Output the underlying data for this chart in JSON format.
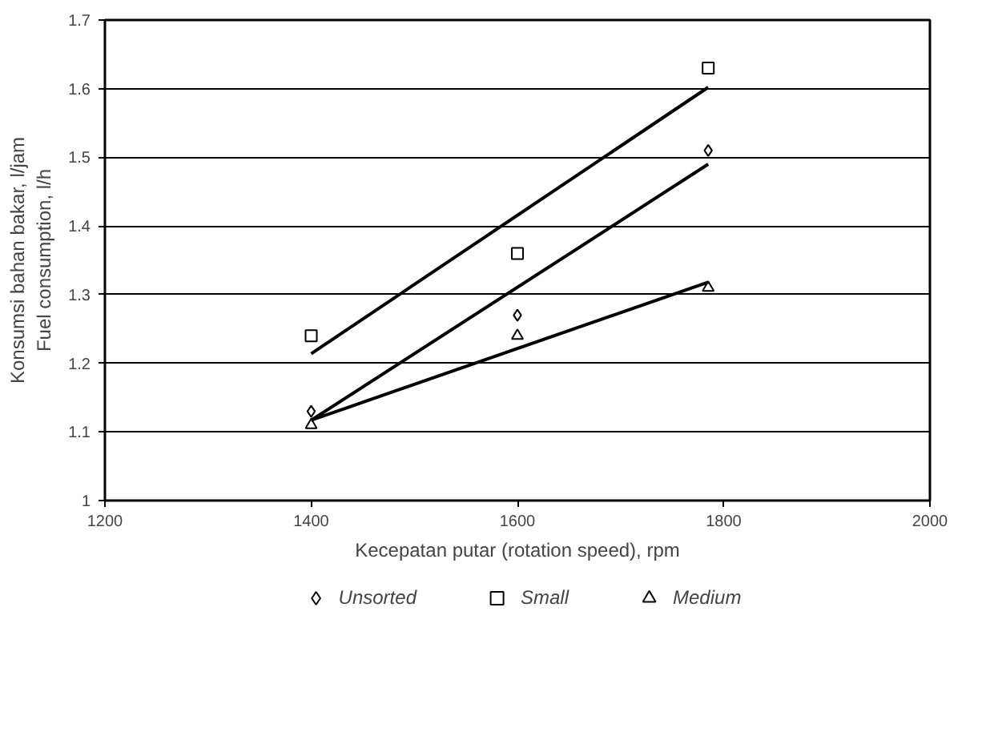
{
  "chart_data": {
    "type": "scatter",
    "xlabel": "Kecepatan putar (rotation speed), rpm",
    "ylabel": "Konsumsi bahan bakar, l/jam\nFuel consumption, l/h",
    "xlim": [
      1200,
      2000
    ],
    "xticks": [
      1200,
      1400,
      1600,
      1800,
      2000
    ],
    "ylim": [
      1,
      1.7
    ],
    "yticks": [
      1,
      1.1,
      1.2,
      1.3,
      1.4,
      1.5,
      1.6,
      1.7
    ],
    "grid": "y",
    "legend": "bottom",
    "series": [
      {
        "name": "Unsorted",
        "color": "#000000",
        "marker": "diamond",
        "x": [
          1400,
          1600,
          1785
        ],
        "values": [
          1.13,
          1.27,
          1.51
        ]
      },
      {
        "name": "Small",
        "color": "#000000",
        "marker": "square",
        "x": [
          1400,
          1600,
          1785
        ],
        "values": [
          1.24,
          1.36,
          1.63
        ]
      },
      {
        "name": "Medium",
        "color": "#000000",
        "marker": "triangle",
        "x": [
          1400,
          1600,
          1785
        ],
        "values": [
          1.11,
          1.24,
          1.31
        ]
      },
      {
        "type": "line",
        "color": "#000000",
        "x": [
          1400,
          1785
        ],
        "values": [
          1.214,
          1.602
        ]
      },
      {
        "type": "line",
        "color": "#000000",
        "x": [
          1400,
          1785
        ],
        "values": [
          1.117,
          1.49
        ]
      },
      {
        "type": "line",
        "color": "#000000",
        "x": [
          1400,
          1785
        ],
        "values": [
          1.117,
          1.318
        ]
      }
    ]
  }
}
